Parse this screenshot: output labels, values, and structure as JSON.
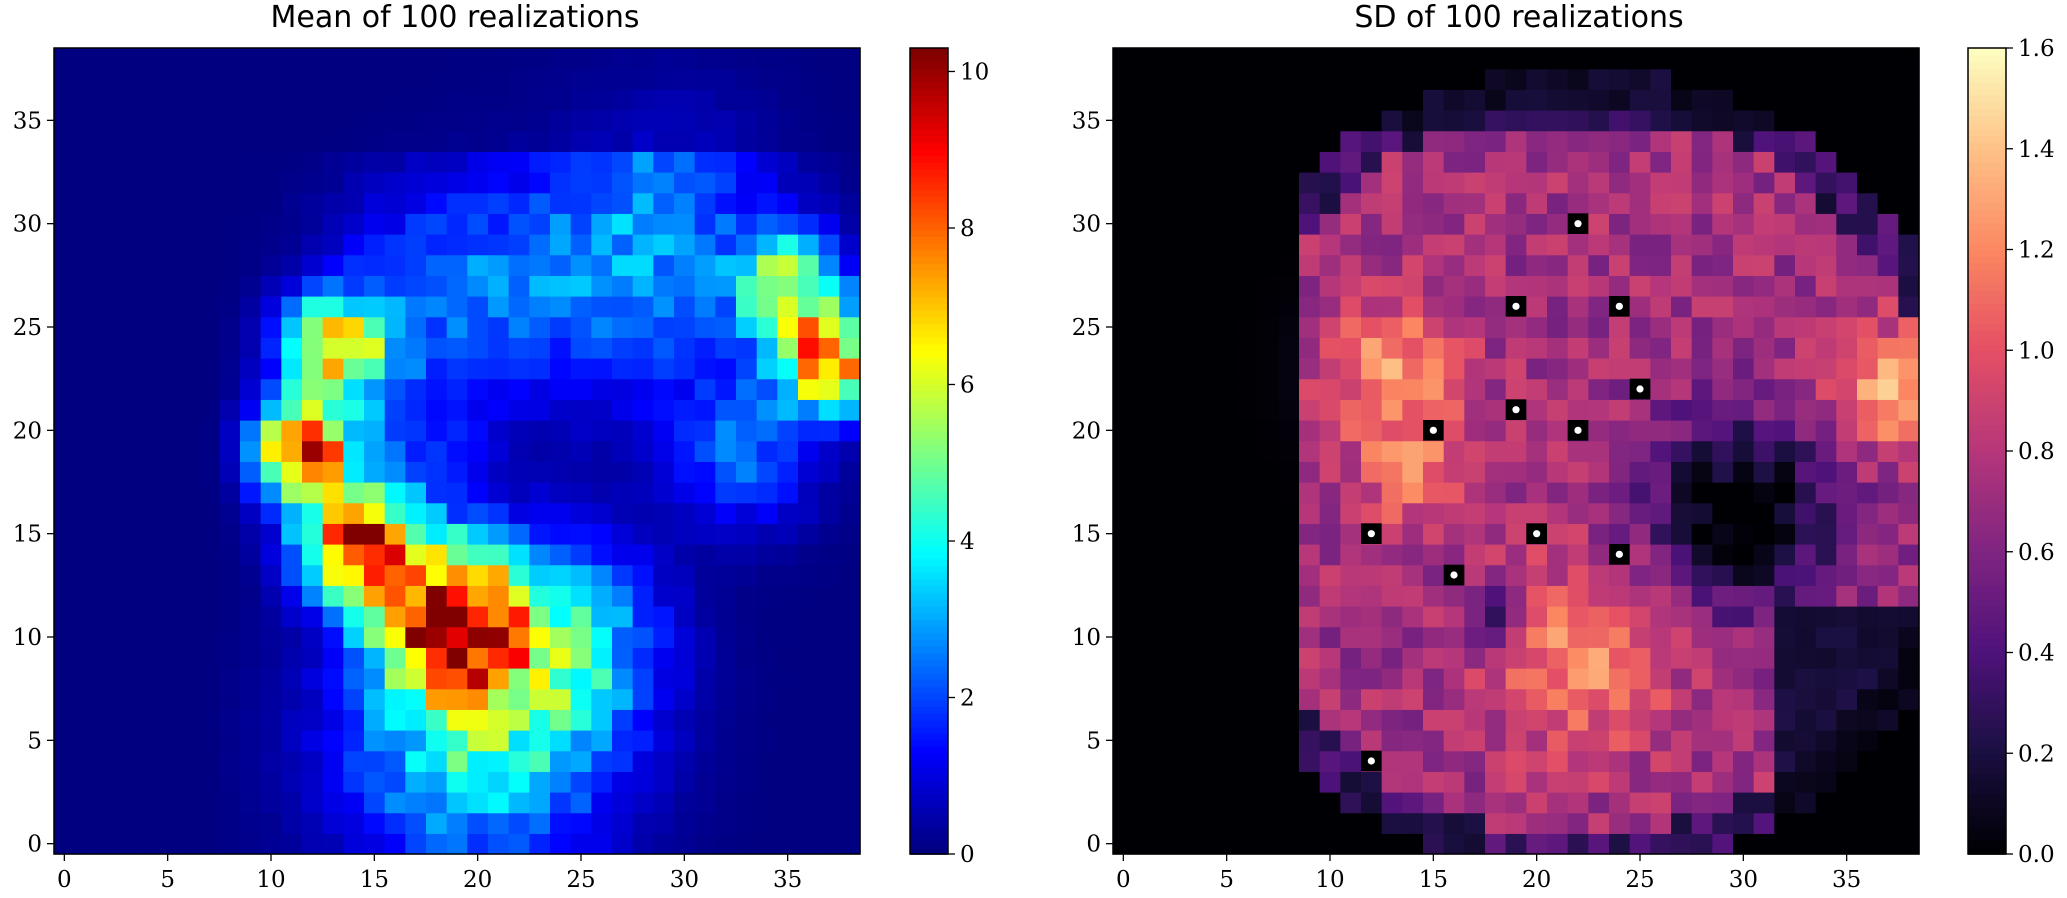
{
  "chart_data": [
    {
      "type": "heatmap",
      "title": "Mean of 100 realizations",
      "grid_size": [
        39,
        39
      ],
      "x_ticks": [
        "0",
        "5",
        "10",
        "15",
        "20",
        "25",
        "30",
        "35"
      ],
      "y_ticks": [
        "0",
        "5",
        "10",
        "15",
        "20",
        "25",
        "30",
        "35"
      ],
      "xlim": [
        -0.5,
        38.5
      ],
      "ylim": [
        -0.5,
        38.5
      ],
      "colormap": "jet",
      "colorbar": {
        "range": [
          0,
          10.3
        ],
        "ticks": [
          "0",
          "2",
          "4",
          "6",
          "8",
          "10"
        ]
      },
      "approx_hotspots": [
        {
          "x": 18,
          "y": 11,
          "value": 10.0
        },
        {
          "x": 14,
          "y": 14,
          "value": 9.0
        },
        {
          "x": 11,
          "y": 19,
          "value": 9.0
        },
        {
          "x": 13,
          "y": 24,
          "value": 8.5
        },
        {
          "x": 37,
          "y": 24,
          "value": 8.0
        },
        {
          "x": 35,
          "y": 27,
          "value": 7.0
        }
      ]
    },
    {
      "type": "heatmap",
      "title": "SD of 100 realizations",
      "grid_size": [
        39,
        39
      ],
      "x_ticks": [
        "0",
        "5",
        "10",
        "15",
        "20",
        "25",
        "30",
        "35"
      ],
      "y_ticks": [
        "0",
        "5",
        "10",
        "15",
        "20",
        "25",
        "30",
        "35"
      ],
      "xlim": [
        -0.5,
        38.5
      ],
      "ylim": [
        -0.5,
        38.5
      ],
      "colormap": "magma",
      "colorbar": {
        "range": [
          0,
          1.6
        ],
        "ticks": [
          "0.0",
          "0.2",
          "0.4",
          "0.6",
          "0.8",
          "1.0",
          "1.2",
          "1.4",
          "1.6"
        ]
      },
      "conditioning_points": [
        {
          "x": 22,
          "y": 30
        },
        {
          "x": 19,
          "y": 26
        },
        {
          "x": 24,
          "y": 26
        },
        {
          "x": 25,
          "y": 22
        },
        {
          "x": 19,
          "y": 21
        },
        {
          "x": 15,
          "y": 20
        },
        {
          "x": 22,
          "y": 20
        },
        {
          "x": 12,
          "y": 15
        },
        {
          "x": 20,
          "y": 15
        },
        {
          "x": 24,
          "y": 14
        },
        {
          "x": 16,
          "y": 13
        },
        {
          "x": 12,
          "y": 4
        }
      ]
    }
  ]
}
